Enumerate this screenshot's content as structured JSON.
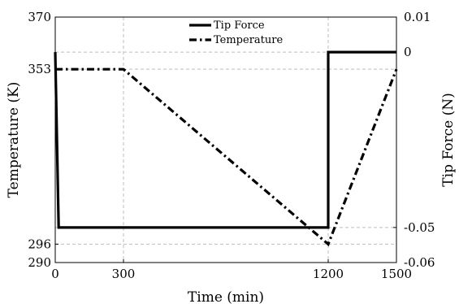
{
  "chart_data": {
    "type": "line",
    "xlabel": "Time (min)",
    "ylabel_left": "Temperature (K)",
    "ylabel_right": "Tip Force (N)",
    "xlim": [
      0,
      1500
    ],
    "ylim_left": [
      290,
      370
    ],
    "ylim_right": [
      -0.06,
      0.01
    ],
    "xticks": [
      "0",
      "300",
      "1200",
      "1500"
    ],
    "yticks_left": [
      "370",
      "353",
      "296",
      "290"
    ],
    "yticks_right": [
      "0.01",
      "0",
      "-0.05",
      "-0.06"
    ],
    "grid": true,
    "legend_position": "top-center",
    "series": [
      {
        "name": "Tip Force",
        "axis": "right",
        "style": "solid",
        "color": "#000000",
        "x": [
          0,
          15,
          15,
          1200,
          1200,
          1500
        ],
        "y": [
          0,
          -0.05,
          -0.05,
          -0.05,
          0,
          0
        ]
      },
      {
        "name": "Temperature",
        "axis": "left",
        "style": "dash-dot",
        "color": "#000000",
        "x": [
          0,
          300,
          1200,
          1500
        ],
        "y": [
          353,
          353,
          296,
          353
        ]
      }
    ]
  }
}
